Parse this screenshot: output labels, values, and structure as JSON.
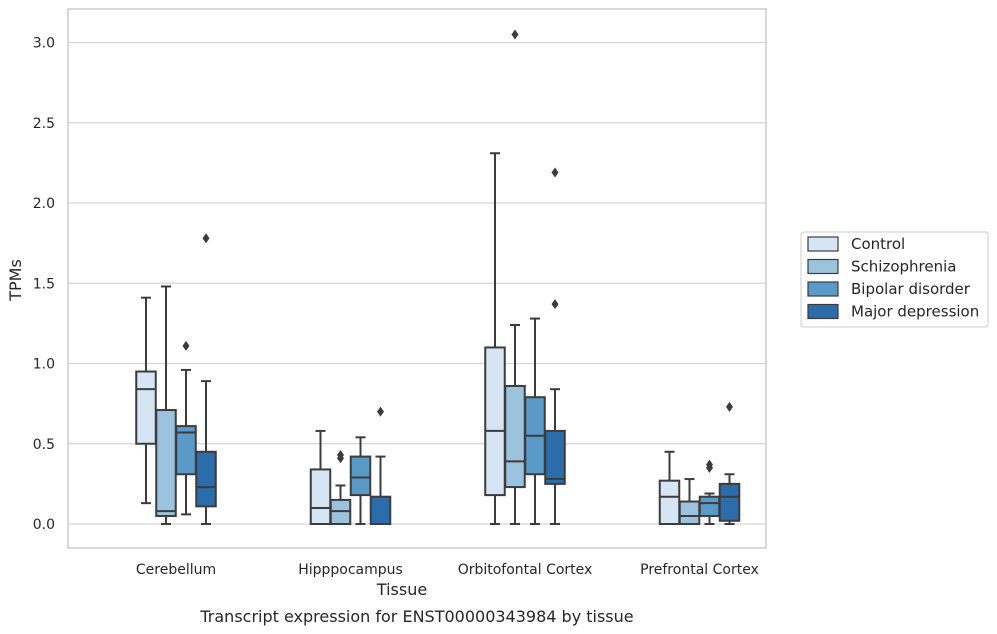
{
  "chart_data": {
    "type": "boxplot",
    "caption": "Transcript expression for ENST00000343984 by tissue",
    "xlabel": "Tissue",
    "ylabel": "TPMs",
    "ylim": [
      -0.15,
      3.2
    ],
    "yticks": [
      0.0,
      0.5,
      1.0,
      1.5,
      2.0,
      2.5,
      3.0
    ],
    "ytick_labels": [
      "0.0",
      "0.5",
      "1.0",
      "1.5",
      "2.0",
      "2.5",
      "3.0"
    ],
    "grid": "horizontal",
    "legend_position": "right",
    "categories": [
      "Cerebellum",
      "Hipppocampus",
      "Orbitofontal Cortex",
      "Prefrontal Cortex"
    ],
    "series": [
      {
        "name": "Control",
        "color": "#d6e5f3",
        "boxes": [
          {
            "whislo": 0.13,
            "q1": 0.5,
            "med": 0.84,
            "q3": 0.95,
            "whishi": 1.41,
            "fliers": []
          },
          {
            "whislo": 0.0,
            "q1": 0.0,
            "med": 0.1,
            "q3": 0.34,
            "whishi": 0.58,
            "fliers": []
          },
          {
            "whislo": 0.0,
            "q1": 0.18,
            "med": 0.58,
            "q3": 1.1,
            "whishi": 2.31,
            "fliers": []
          },
          {
            "whislo": 0.0,
            "q1": 0.0,
            "med": 0.17,
            "q3": 0.27,
            "whishi": 0.45,
            "fliers": []
          }
        ]
      },
      {
        "name": "Schizophrenia",
        "color": "#9bc3dd",
        "boxes": [
          {
            "whislo": 0.0,
            "q1": 0.05,
            "med": 0.08,
            "q3": 0.71,
            "whishi": 1.48,
            "fliers": []
          },
          {
            "whislo": 0.0,
            "q1": 0.0,
            "med": 0.08,
            "q3": 0.15,
            "whishi": 0.24,
            "fliers": [
              0.41,
              0.43
            ]
          },
          {
            "whislo": 0.0,
            "q1": 0.23,
            "med": 0.39,
            "q3": 0.86,
            "whishi": 1.24,
            "fliers": [
              3.05
            ]
          },
          {
            "whislo": 0.0,
            "q1": 0.0,
            "med": 0.05,
            "q3": 0.14,
            "whishi": 0.28,
            "fliers": []
          }
        ]
      },
      {
        "name": "Bipolar disorder",
        "color": "#5a9ac8",
        "boxes": [
          {
            "whislo": 0.06,
            "q1": 0.31,
            "med": 0.57,
            "q3": 0.61,
            "whishi": 0.96,
            "fliers": [
              1.11
            ]
          },
          {
            "whislo": 0.0,
            "q1": 0.18,
            "med": 0.29,
            "q3": 0.42,
            "whishi": 0.54,
            "fliers": []
          },
          {
            "whislo": 0.0,
            "q1": 0.31,
            "med": 0.55,
            "q3": 0.79,
            "whishi": 1.28,
            "fliers": []
          },
          {
            "whislo": 0.0,
            "q1": 0.05,
            "med": 0.13,
            "q3": 0.17,
            "whishi": 0.19,
            "fliers": [
              0.35,
              0.37
            ]
          }
        ]
      },
      {
        "name": "Major depression",
        "color": "#2b6cab",
        "boxes": [
          {
            "whislo": 0.0,
            "q1": 0.11,
            "med": 0.23,
            "q3": 0.45,
            "whishi": 0.89,
            "fliers": [
              1.78
            ]
          },
          {
            "whislo": 0.0,
            "q1": 0.0,
            "med": 0.0,
            "q3": 0.17,
            "whishi": 0.42,
            "fliers": [
              0.7
            ]
          },
          {
            "whislo": 0.0,
            "q1": 0.25,
            "med": 0.28,
            "q3": 0.58,
            "whishi": 0.84,
            "fliers": [
              1.37,
              2.19
            ]
          },
          {
            "whislo": 0.0,
            "q1": 0.02,
            "med": 0.17,
            "q3": 0.25,
            "whishi": 0.31,
            "fliers": [
              0.73
            ]
          }
        ]
      }
    ]
  }
}
